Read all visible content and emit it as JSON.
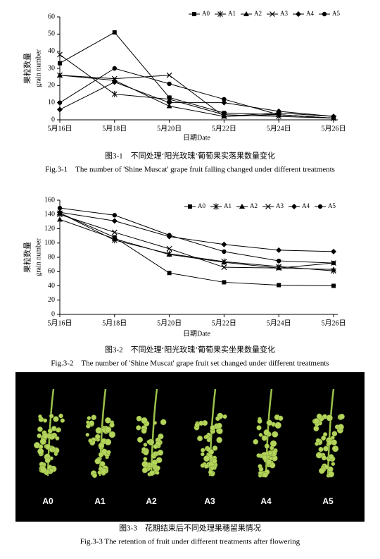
{
  "chart_data": [
    {
      "type": "line",
      "ylim": [
        0,
        60
      ],
      "yticks": [
        0,
        10,
        20,
        30,
        40,
        50,
        60
      ],
      "ylabel": [
        "果粒数量",
        "grain number"
      ],
      "xlabel": "日期Date",
      "categories": [
        "5月16日",
        "5月18日",
        "5月20日",
        "5月22日",
        "5月24日",
        "5月26日"
      ],
      "series": [
        {
          "name": "A0",
          "color": "#000000",
          "marker": "square",
          "values": [
            33,
            51,
            13,
            4,
            3,
            1
          ]
        },
        {
          "name": "A1",
          "color": "#000000",
          "marker": "star",
          "values": [
            38,
            15,
            12,
            3,
            2,
            1
          ]
        },
        {
          "name": "A2",
          "color": "#000000",
          "marker": "triangle",
          "values": [
            26,
            23,
            8,
            2,
            4,
            2
          ]
        },
        {
          "name": "A3",
          "color": "#000000",
          "marker": "cross",
          "values": [
            26,
            24,
            26,
            2,
            3,
            1
          ]
        },
        {
          "name": "A4",
          "color": "#000000",
          "marker": "diamond",
          "values": [
            6,
            22,
            10,
            10,
            5,
            2
          ]
        },
        {
          "name": "A5",
          "color": "#000000",
          "marker": "circle",
          "values": [
            10,
            30,
            21,
            12,
            3,
            1
          ]
        }
      ],
      "caption": "图3-1　不同处理‘阳光玫瑰’葡萄果实落果数量变化",
      "caption_en": "Fig.3-1　The number of 'Shine Muscat' grape fruit falling changed under different treatments"
    },
    {
      "type": "line",
      "ylim": [
        0,
        160
      ],
      "yticks": [
        0,
        20,
        40,
        60,
        80,
        100,
        120,
        140,
        160
      ],
      "ylabel": [
        "果粒数量",
        "grain number"
      ],
      "xlabel": "日期Date",
      "categories": [
        "5月16日",
        "5月18日",
        "5月20日",
        "5月22日",
        "5月24日",
        "5月26日"
      ],
      "series": [
        {
          "name": "A0",
          "color": "#000000",
          "marker": "square",
          "values": [
            142,
            108,
            58,
            45,
            41,
            40
          ]
        },
        {
          "name": "A1",
          "color": "#000000",
          "marker": "star",
          "values": [
            142,
            104,
            85,
            74,
            67,
            61
          ]
        },
        {
          "name": "A2",
          "color": "#000000",
          "marker": "triangle",
          "values": [
            133,
            106,
            84,
            73,
            65,
            63
          ]
        },
        {
          "name": "A3",
          "color": "#000000",
          "marker": "cross",
          "values": [
            140,
            115,
            92,
            66,
            65,
            72
          ]
        },
        {
          "name": "A4",
          "color": "#000000",
          "marker": "diamond",
          "values": [
            143,
            131,
            109,
            98,
            90,
            88
          ]
        },
        {
          "name": "A5",
          "color": "#000000",
          "marker": "circle",
          "values": [
            149,
            139,
            111,
            88,
            75,
            72
          ]
        }
      ],
      "caption": "图3-2　不同处理‘阳光玫瑰’葡萄果实坐果数量变化",
      "caption_en": "Fig.3-2　The number of 'Shine Muscat' grape fruit set changed under different treatments"
    }
  ],
  "photo": {
    "labels": [
      "A0",
      "A1",
      "A2",
      "A3",
      "A4",
      "A5"
    ],
    "caption": "图3-3　花期结束后不同处理果穗留果情况",
    "caption_en": "Fig.3-3 The retention of fruit under different treatments after flowering"
  }
}
